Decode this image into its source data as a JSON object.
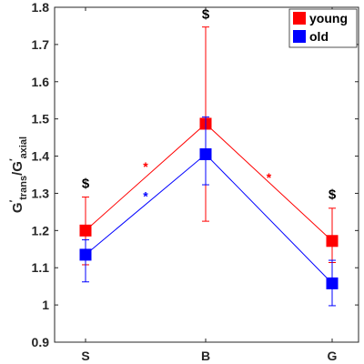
{
  "chart_data": {
    "type": "line",
    "categories": [
      "S",
      "B",
      "G"
    ],
    "ylim": [
      0.9,
      1.8
    ],
    "yticks": [
      "0.9",
      "1",
      "1.1",
      "1.2",
      "1.3",
      "1.4",
      "1.5",
      "1.6",
      "1.7",
      "1.8"
    ],
    "ylabel": {
      "base1": "G",
      "prime1": "′",
      "sub1": "trans",
      "slash": "/",
      "base2": "G",
      "prime2": "′",
      "sub2": "axial"
    },
    "legend_position": "top-right",
    "grid": false,
    "series": [
      {
        "name": "young",
        "color": "#ff0000",
        "values": [
          1.2,
          1.487,
          1.172
        ],
        "err_low": [
          0.092,
          0.262,
          0.058
        ],
        "err_high": [
          0.09,
          0.26,
          0.088
        ]
      },
      {
        "name": "old",
        "color": "#0000ff",
        "values": [
          1.135,
          1.405,
          1.058
        ],
        "err_low": [
          0.073,
          0.082,
          0.06
        ],
        "err_high": [
          0.04,
          0.1,
          0.062
        ]
      }
    ],
    "annotations": [
      {
        "text": "$",
        "x": 0,
        "y": 1.315,
        "color": "#000000",
        "size": 15
      },
      {
        "text": "$",
        "x": 1,
        "y": 1.77,
        "color": "#000000",
        "size": 15
      },
      {
        "text": "$",
        "x": 2,
        "y": 1.285,
        "color": "#000000",
        "size": 15
      },
      {
        "text": "*",
        "x": 0.5,
        "y": 1.36,
        "color": "#ff0000",
        "size": 14
      },
      {
        "text": "*",
        "x": 0.5,
        "y": 1.28,
        "color": "#0000ff",
        "size": 14
      },
      {
        "text": "*",
        "x": 1.5,
        "y": 1.33,
        "color": "#ff0000",
        "size": 14
      }
    ]
  }
}
